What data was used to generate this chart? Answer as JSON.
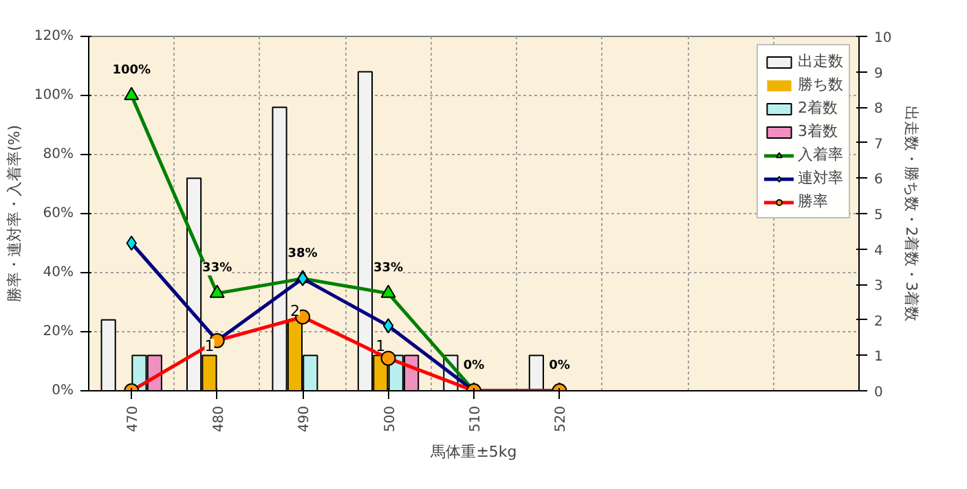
{
  "chart_data": {
    "type": "bar",
    "xlabel": "馬体重±5kg",
    "ylabel": "勝率・連対率・入着率(%)",
    "y2label": "出走数・勝ち数・2着数・3着数",
    "categories": [
      "470",
      "480",
      "490",
      "500",
      "510",
      "520",
      null,
      null,
      null
    ],
    "series": [
      {
        "name": "出走数",
        "axis": "y2",
        "color": "#f2f2f2",
        "values": [
          2,
          6,
          8,
          9,
          1,
          1,
          null,
          null,
          null
        ]
      },
      {
        "name": "勝ち数",
        "axis": "y2",
        "color": "#f0b400",
        "values": [
          0,
          1,
          2,
          1,
          0,
          0,
          null,
          null,
          null
        ],
        "value_labels": [
          null,
          "1",
          "2",
          "1",
          null,
          null,
          null,
          null,
          null
        ]
      },
      {
        "name": "2着数",
        "axis": "y2",
        "color": "#b8f0f0",
        "values": [
          1,
          0,
          1,
          1,
          0,
          0,
          null,
          null,
          null
        ]
      },
      {
        "name": "3着数",
        "axis": "y2",
        "color": "#f090c0",
        "values": [
          1,
          0,
          0,
          1,
          0,
          0,
          null,
          null,
          null
        ]
      },
      {
        "name": "入着率",
        "type": "line",
        "color": "#008000",
        "marker": "triangle",
        "values": [
          100,
          33,
          38,
          33,
          0,
          0,
          null,
          null,
          null
        ],
        "value_labels": [
          "100%",
          "33%",
          "38%",
          "33%",
          "0%",
          "0%",
          null,
          null,
          null
        ]
      },
      {
        "name": "連対率",
        "type": "line",
        "color": "#000080",
        "marker": "diamond",
        "values": [
          50,
          17,
          38,
          22,
          0,
          0,
          null,
          null,
          null
        ]
      },
      {
        "name": "勝率",
        "type": "line",
        "color": "#ff0000",
        "marker": "circle",
        "values": [
          0,
          17,
          25,
          11,
          0,
          0,
          null,
          null,
          null
        ]
      }
    ],
    "ylim": [
      0,
      120
    ],
    "yticks": [
      {
        "value": 0,
        "label": "0%"
      },
      {
        "value": 20,
        "label": "20%"
      },
      {
        "value": 40,
        "label": "40%"
      },
      {
        "value": 60,
        "label": "60%"
      },
      {
        "value": 80,
        "label": "80%"
      },
      {
        "value": 100,
        "label": "100%"
      },
      {
        "value": 120,
        "label": "120%"
      }
    ],
    "y2lim": [
      0,
      10
    ],
    "y2ticks": [
      0,
      1,
      2,
      3,
      4,
      5,
      6,
      7,
      8,
      9,
      10
    ],
    "grid": true,
    "legend": "top right"
  }
}
